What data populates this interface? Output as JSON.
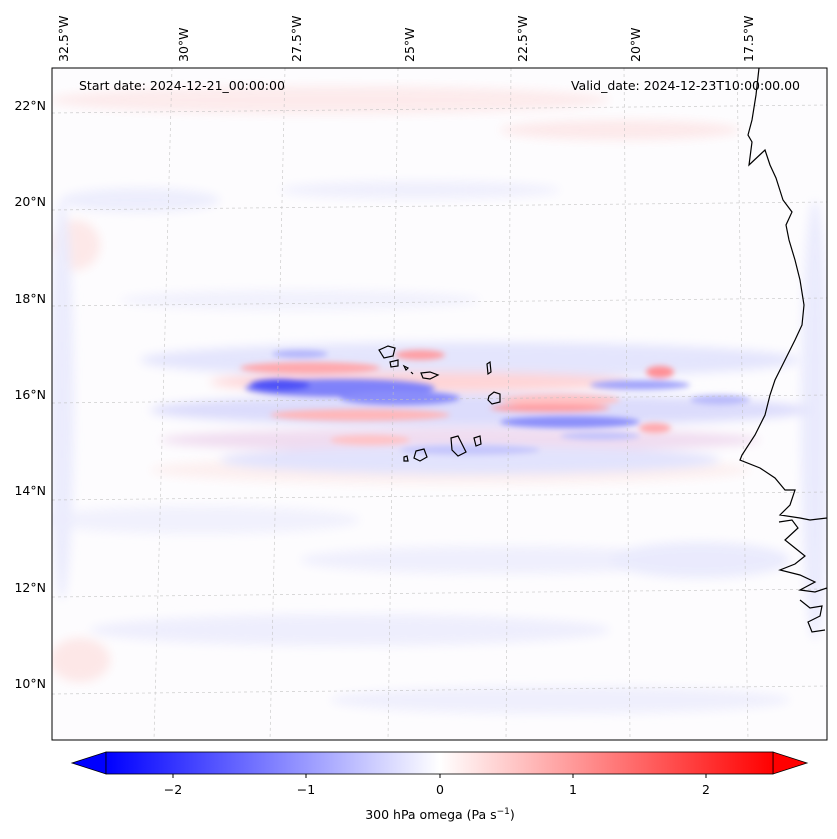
{
  "map": {
    "start_date_label": "Start date: 2024-12-21_00:00:00",
    "valid_date_label": "Valid_date: 2024-12-23T10:00:00.00",
    "longitude_labels": [
      "32.5°W",
      "30°W",
      "27.5°W",
      "25°W",
      "22.5°W",
      "20°W",
      "17.5°W"
    ],
    "latitude_labels": [
      "22°N",
      "20°N",
      "18°N",
      "16°N",
      "14°N",
      "12°N",
      "10°N"
    ],
    "variable": "300 hPa omega",
    "region": "Cabo Verde and West African coast"
  },
  "colorbar": {
    "label": "300 hPa omega (Pa s",
    "label_superscript": "−1",
    "label_close": ")",
    "ticks": [
      "−2",
      "−1",
      "0",
      "1",
      "2"
    ],
    "tick_values": [
      -2,
      -1,
      0,
      1,
      2
    ],
    "range": [
      -2.5,
      2.5
    ],
    "colormap": "bwr",
    "low_color": "#0000ff",
    "mid_color": "#ffffff",
    "high_color": "#ff0000"
  }
}
